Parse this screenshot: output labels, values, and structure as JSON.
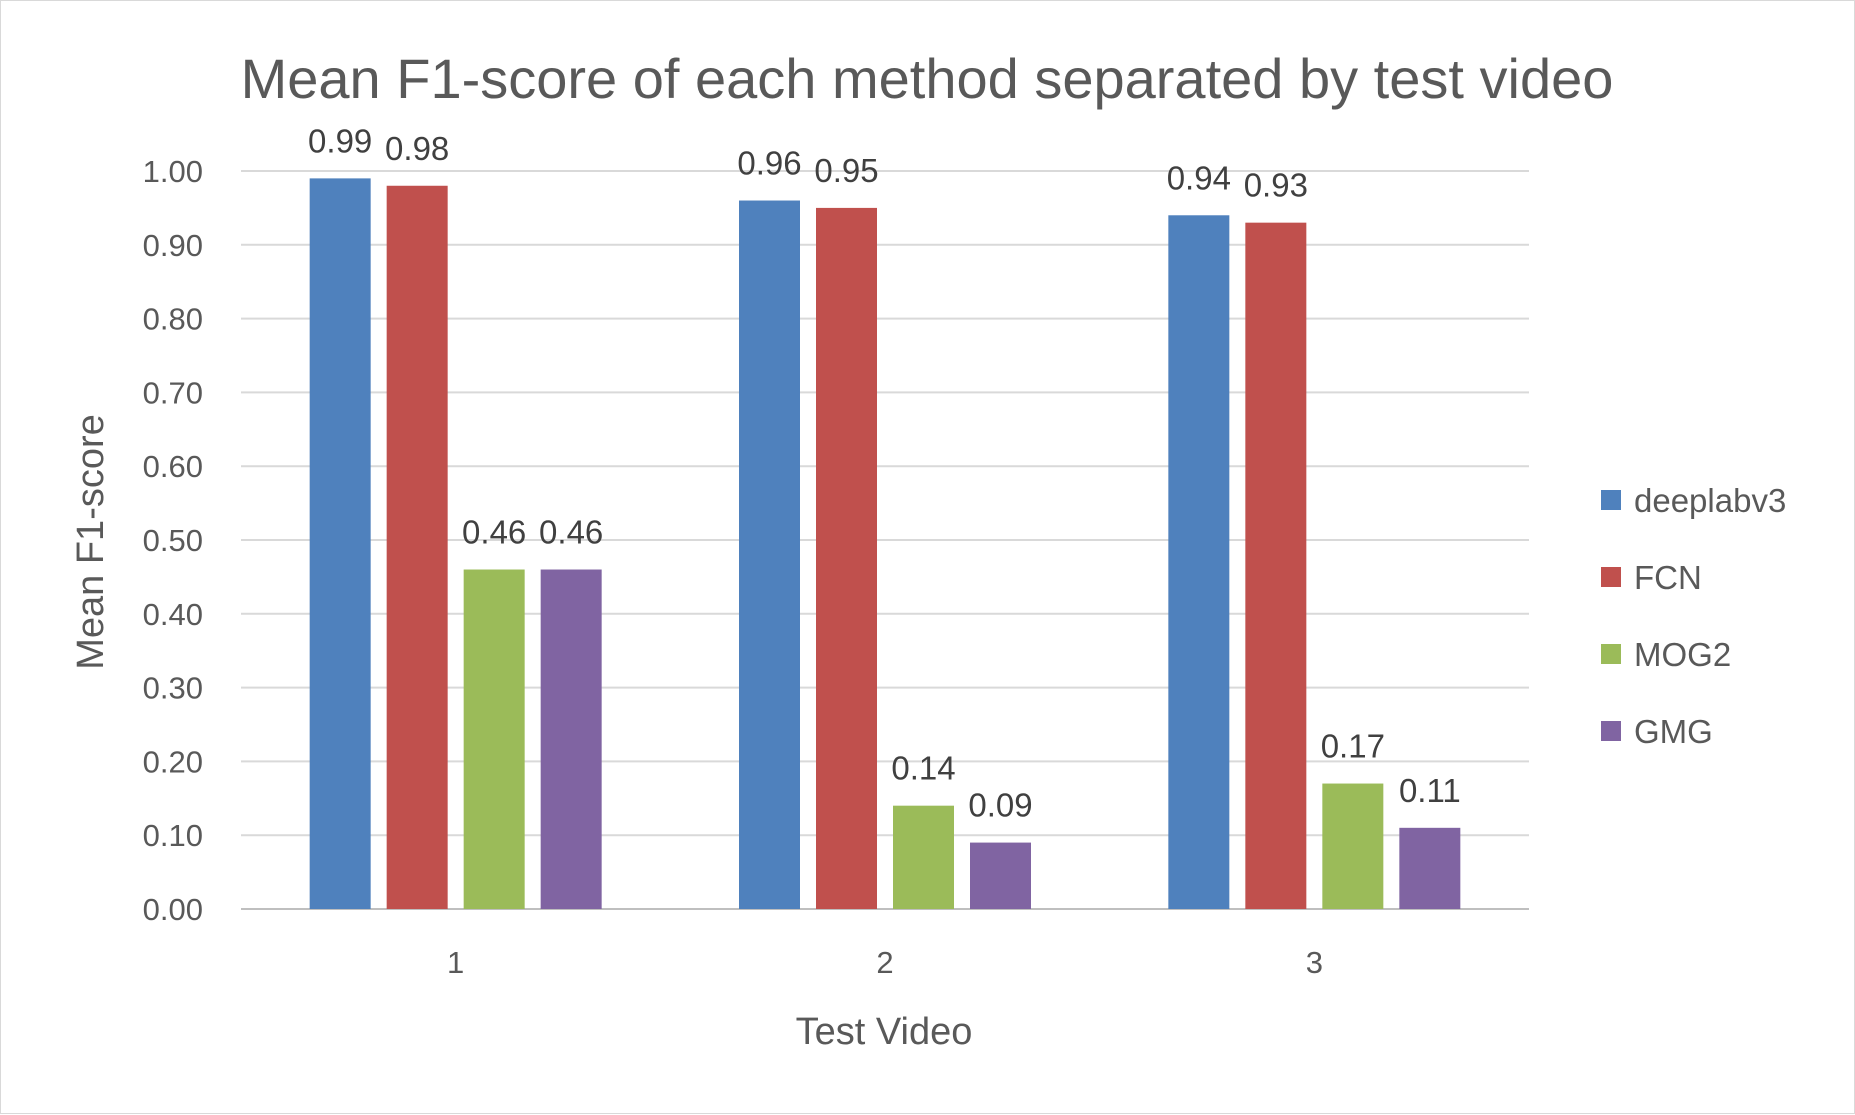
{
  "chart_data": {
    "type": "bar",
    "title": "Mean F1-score of each method separated by test video",
    "xlabel": "Test Video",
    "ylabel": "Mean F1-score",
    "categories": [
      "1",
      "2",
      "3"
    ],
    "series": [
      {
        "name": "deeplabv3",
        "color": "#4f81bd",
        "values": [
          0.99,
          0.96,
          0.94
        ],
        "labels": [
          "0.99",
          "0.96",
          "0.94"
        ]
      },
      {
        "name": "FCN",
        "color": "#c0504d",
        "values": [
          0.98,
          0.95,
          0.93
        ],
        "labels": [
          "0.98",
          "0.95",
          "0.93"
        ]
      },
      {
        "name": "MOG2",
        "color": "#9bbb59",
        "values": [
          0.46,
          0.14,
          0.17
        ],
        "labels": [
          "0.46",
          "0.14",
          "0.17"
        ]
      },
      {
        "name": "GMG",
        "color": "#8064a2",
        "values": [
          0.46,
          0.09,
          0.11
        ],
        "labels": [
          "0.46",
          "0.09",
          "0.11"
        ]
      }
    ],
    "ylim": [
      0,
      1
    ],
    "yticks": [
      "0.00",
      "0.10",
      "0.20",
      "0.30",
      "0.40",
      "0.50",
      "0.60",
      "0.70",
      "0.80",
      "0.90",
      "1.00"
    ],
    "grid": true,
    "legend_position": "right"
  }
}
